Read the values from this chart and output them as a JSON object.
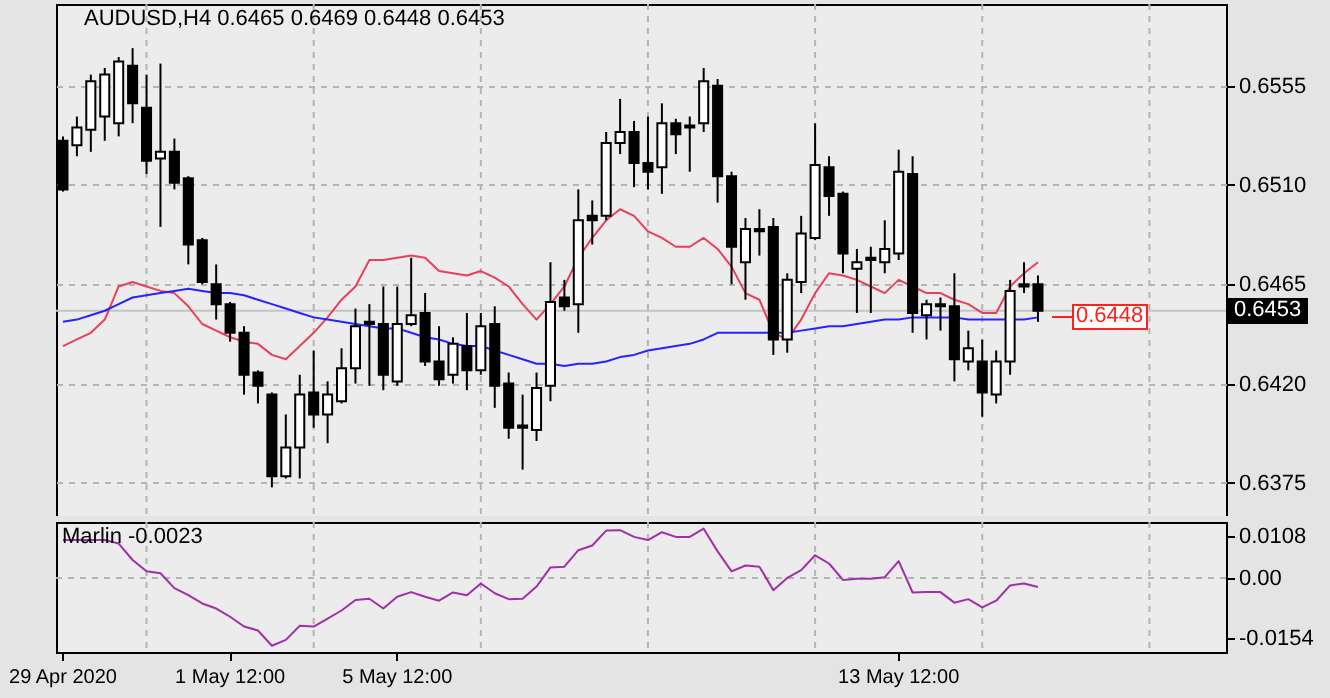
{
  "chart_data": [
    {
      "type": "candlestick",
      "title": "AUDUSD,H4  0.6465 0.6469 0.6448 0.6453",
      "categories": [
        null,
        null,
        null,
        null,
        null,
        null,
        null,
        null,
        null,
        null,
        null,
        null,
        null,
        null,
        null,
        null,
        null,
        null,
        null,
        null,
        null,
        null,
        null,
        null,
        null,
        null,
        null,
        null,
        null,
        null,
        null,
        null,
        null,
        null,
        null,
        null,
        null,
        null,
        null,
        null,
        null,
        null,
        null,
        null,
        null,
        null,
        null,
        null,
        null,
        null,
        null,
        null,
        null,
        null,
        null,
        null,
        null,
        null,
        null,
        null,
        null,
        null,
        null,
        null,
        null,
        null,
        null,
        null,
        null,
        null,
        null,
        null,
        null,
        null,
        null,
        null,
        null,
        null,
        null,
        null,
        null,
        null,
        null,
        null
      ],
      "ohlc": [
        [
          0.653,
          0.6532,
          0.6507,
          0.6508
        ],
        [
          0.6528,
          0.6541,
          0.6523,
          0.6536
        ],
        [
          0.6535,
          0.656,
          0.6525,
          0.6557
        ],
        [
          0.6541,
          0.6563,
          0.653,
          0.656
        ],
        [
          0.6538,
          0.6568,
          0.6532,
          0.6566
        ],
        [
          0.6564,
          0.6572,
          0.6538,
          0.6547
        ],
        [
          0.6545,
          0.656,
          0.6515,
          0.6521
        ],
        [
          0.6522,
          0.6565,
          0.6491,
          0.6525
        ],
        [
          0.6525,
          0.6531,
          0.6508,
          0.6511
        ],
        [
          0.6513,
          0.6514,
          0.6474,
          0.6483
        ],
        [
          0.6485,
          0.6486,
          0.6465,
          0.6466
        ],
        [
          0.6465,
          0.6474,
          0.6449,
          0.6456
        ],
        [
          0.6456,
          0.6457,
          0.6439,
          0.6443
        ],
        [
          0.6443,
          0.6446,
          0.6415,
          0.6424
        ],
        [
          0.6425,
          0.6426,
          0.6411,
          0.6419
        ],
        [
          0.6415,
          0.6416,
          0.6373,
          0.6378
        ],
        [
          0.6378,
          0.6406,
          0.6377,
          0.6391
        ],
        [
          0.6391,
          0.6424,
          0.6377,
          0.6415
        ],
        [
          0.6416,
          0.6435,
          0.64,
          0.6406
        ],
        [
          0.6406,
          0.6421,
          0.6393,
          0.6415
        ],
        [
          0.6412,
          0.6436,
          0.6411,
          0.6427
        ],
        [
          0.6427,
          0.6454,
          0.642,
          0.6446
        ],
        [
          0.6448,
          0.6456,
          0.6419,
          0.6447
        ],
        [
          0.6447,
          0.6464,
          0.6417,
          0.6424
        ],
        [
          0.6421,
          0.6464,
          0.6419,
          0.6447
        ],
        [
          0.6447,
          0.6477,
          0.6446,
          0.6451
        ],
        [
          0.6452,
          0.6461,
          0.6428,
          0.643
        ],
        [
          0.643,
          0.6446,
          0.6419,
          0.6422
        ],
        [
          0.6424,
          0.6441,
          0.642,
          0.6438
        ],
        [
          0.6437,
          0.6452,
          0.6417,
          0.6426
        ],
        [
          0.6426,
          0.6452,
          0.6424,
          0.6446
        ],
        [
          0.6447,
          0.6455,
          0.6409,
          0.6419
        ],
        [
          0.642,
          0.6425,
          0.6395,
          0.64
        ],
        [
          0.6401,
          0.6415,
          0.6381,
          0.64
        ],
        [
          0.6399,
          0.6425,
          0.6394,
          0.6418
        ],
        [
          0.6419,
          0.6475,
          0.6412,
          0.6457
        ],
        [
          0.6459,
          0.6467,
          0.6453,
          0.6455
        ],
        [
          0.6456,
          0.6508,
          0.6443,
          0.6494
        ],
        [
          0.6496,
          0.6503,
          0.6483,
          0.6494
        ],
        [
          0.6496,
          0.6534,
          0.6494,
          0.6529
        ],
        [
          0.6529,
          0.6549,
          0.6524,
          0.6534
        ],
        [
          0.6534,
          0.6539,
          0.6509,
          0.652
        ],
        [
          0.652,
          0.6541,
          0.6508,
          0.6516
        ],
        [
          0.6518,
          0.6547,
          0.6506,
          0.6538
        ],
        [
          0.6538,
          0.654,
          0.6524,
          0.6533
        ],
        [
          0.6537,
          0.6541,
          0.6516,
          0.6536
        ],
        [
          0.6538,
          0.6563,
          0.6534,
          0.6557
        ],
        [
          0.6555,
          0.6558,
          0.6502,
          0.6514
        ],
        [
          0.6514,
          0.6516,
          0.6465,
          0.6482
        ],
        [
          0.6475,
          0.6495,
          0.6458,
          0.649
        ],
        [
          0.649,
          0.6499,
          0.6478,
          0.6489
        ],
        [
          0.6491,
          0.6495,
          0.6433,
          0.644
        ],
        [
          0.644,
          0.647,
          0.6434,
          0.6467
        ],
        [
          0.6466,
          0.6496,
          0.6461,
          0.6488
        ],
        [
          0.6486,
          0.6538,
          0.6485,
          0.6519
        ],
        [
          0.6518,
          0.6523,
          0.6496,
          0.6505
        ],
        [
          0.6506,
          0.6507,
          0.647,
          0.6479
        ],
        [
          0.6472,
          0.6481,
          0.6452,
          0.6475
        ],
        [
          0.6477,
          0.6482,
          0.6452,
          0.6476
        ],
        [
          0.6475,
          0.6494,
          0.647,
          0.6481
        ],
        [
          0.6479,
          0.6526,
          0.6476,
          0.6516
        ],
        [
          0.6515,
          0.6523,
          0.6443,
          0.6452
        ],
        [
          0.6451,
          0.6458,
          0.644,
          0.6456
        ],
        [
          0.6456,
          0.6459,
          0.6444,
          0.6455
        ],
        [
          0.6455,
          0.647,
          0.6421,
          0.6431
        ],
        [
          0.643,
          0.6444,
          0.6426,
          0.6436
        ],
        [
          0.643,
          0.644,
          0.6405,
          0.6416
        ],
        [
          0.6415,
          0.6435,
          0.6411,
          0.643
        ],
        [
          0.643,
          0.6467,
          0.6424,
          0.6462
        ],
        [
          0.6465,
          0.6475,
          0.6461,
          0.6464
        ],
        [
          0.6465,
          0.6469,
          0.6448,
          0.6453
        ],
        null,
        null,
        null,
        null,
        null,
        null,
        null,
        null,
        null,
        null,
        null,
        null,
        null
      ],
      "series": [
        {
          "type": "line",
          "color": "#e8405a",
          "values": [
            0.6437,
            0.644,
            0.6443,
            0.6449,
            0.6464,
            0.6466,
            0.6464,
            0.6462,
            0.6461,
            0.6455,
            0.6447,
            0.6444,
            0.6441,
            0.6439,
            0.6438,
            0.6433,
            0.6431,
            0.6437,
            0.6443,
            0.645,
            0.6458,
            0.6464,
            0.6476,
            0.6476,
            0.6477,
            0.6478,
            0.6477,
            0.6471,
            0.647,
            0.6469,
            0.6471,
            0.6468,
            0.6464,
            0.6456,
            0.6449,
            0.6456,
            0.6464,
            0.6477,
            0.6486,
            0.6494,
            0.6499,
            0.6496,
            0.6489,
            0.6486,
            0.6482,
            0.6482,
            0.6486,
            0.6481,
            0.6473,
            0.6461,
            0.6458,
            0.6443,
            0.644,
            0.6449,
            0.6461,
            0.647,
            0.6469,
            0.6467,
            0.6464,
            0.6461,
            0.6467,
            0.6464,
            0.6461,
            0.6461,
            0.6458,
            0.6456,
            0.6452,
            0.6452,
            0.6464,
            0.647,
            0.6475,
            null,
            null,
            null,
            null,
            null,
            null,
            null,
            null,
            null,
            null,
            null,
            null,
            null
          ]
        },
        {
          "type": "line",
          "color": "#2424ff",
          "values": [
            0.6448,
            0.6449,
            0.6451,
            0.6453,
            0.6456,
            0.6459,
            0.646,
            0.6461,
            0.6462,
            0.6463,
            0.6462,
            0.6461,
            0.6461,
            0.646,
            0.6458,
            0.6456,
            0.6454,
            0.6452,
            0.645,
            0.6449,
            0.6448,
            0.6447,
            0.6446,
            0.6445,
            0.6445,
            0.6443,
            0.6441,
            0.644,
            0.6438,
            0.6437,
            0.6437,
            0.6435,
            0.6433,
            0.6431,
            0.6429,
            0.6429,
            0.6428,
            0.6429,
            0.6429,
            0.643,
            0.6432,
            0.6433,
            0.6435,
            0.6436,
            0.6437,
            0.6438,
            0.644,
            0.6443,
            0.6443,
            0.6443,
            0.6443,
            0.6443,
            0.6443,
            0.6444,
            0.6445,
            0.6446,
            0.6446,
            0.6447,
            0.6448,
            0.6449,
            0.6449,
            0.645,
            0.645,
            0.645,
            0.645,
            0.6449,
            0.6449,
            0.6449,
            0.6449,
            0.6449,
            0.645,
            null,
            null,
            null,
            null,
            null,
            null,
            null,
            null,
            null,
            null,
            null,
            null,
            null
          ]
        }
      ],
      "ylim": [
        0.636,
        0.6592
      ],
      "yticks": [
        0.6375,
        {
          "value": 0.642,
          "label": "0.6420"
        },
        0.6465,
        {
          "value": 0.651,
          "label": "0.6510"
        },
        0.6555
      ],
      "grid": true,
      "tick_labels": "y",
      "ref_lines": [
        {
          "axis": "y",
          "value": 0.6453,
          "label": "0.6453",
          "color": "#c4c4c4"
        }
      ],
      "annotations": [
        "0.6448"
      ]
    },
    {
      "type": "line",
      "title": "Marlin -0.0023",
      "color": "#a030a8",
      "categories": [
        "29 Apr 2020",
        null,
        null,
        null,
        null,
        null,
        null,
        null,
        null,
        null,
        null,
        null,
        "1 May 12:00",
        null,
        null,
        null,
        null,
        null,
        null,
        null,
        null,
        null,
        null,
        null,
        "5 May 12:00",
        null,
        null,
        null,
        null,
        null,
        null,
        null,
        null,
        null,
        null,
        null,
        null,
        null,
        null,
        null,
        null,
        null,
        null,
        null,
        null,
        null,
        null,
        null,
        null,
        null,
        null,
        null,
        null,
        null,
        null,
        null,
        null,
        null,
        null,
        null,
        "13 May 12:00",
        null,
        null,
        null,
        null,
        null,
        null,
        null,
        null,
        null,
        null,
        null,
        null,
        null,
        null,
        null,
        null,
        null,
        null,
        null,
        null,
        null,
        null,
        null
      ],
      "values": [
        0.0097,
        0.0097,
        0.0097,
        0.0097,
        0.0088,
        0.0046,
        0.0017,
        0.0012,
        -0.0026,
        -0.0044,
        -0.0065,
        -0.0078,
        -0.0099,
        -0.0124,
        -0.0134,
        -0.0173,
        -0.0158,
        -0.0122,
        -0.0124,
        -0.0104,
        -0.0083,
        -0.0056,
        -0.0053,
        -0.0078,
        -0.0048,
        -0.0036,
        -0.0048,
        -0.0058,
        -0.0037,
        -0.0044,
        -0.0014,
        -0.0039,
        -0.0054,
        -0.0053,
        -0.0022,
        0.0027,
        0.0029,
        0.0071,
        0.0083,
        0.0121,
        0.0122,
        0.0105,
        0.0097,
        0.0117,
        0.0105,
        0.0105,
        0.0126,
        0.0068,
        0.0017,
        0.0032,
        0.0029,
        -0.0031,
        0,
        0.002,
        0.0058,
        0.0037,
        -0.0005,
        -0.0002,
        -0.0002,
        0.0002,
        0.0043,
        -0.0037,
        -0.0036,
        -0.0036,
        -0.0063,
        -0.0054,
        -0.0075,
        -0.0058,
        -0.0019,
        -0.0014,
        -0.0023,
        null,
        null,
        null,
        null,
        null,
        null,
        null,
        null,
        null,
        null,
        null,
        null,
        null
      ],
      "ylim": [
        -0.0189,
        0.0143
      ],
      "yticks": [
        0.0108,
        {
          "value": 0,
          "label": "0.00"
        },
        -0.0154
      ],
      "grid": "x",
      "ref_lines": [
        {
          "axis": "y",
          "value": 0,
          "color": "#b4b4b4",
          "line_style": "dashed"
        }
      ]
    }
  ]
}
